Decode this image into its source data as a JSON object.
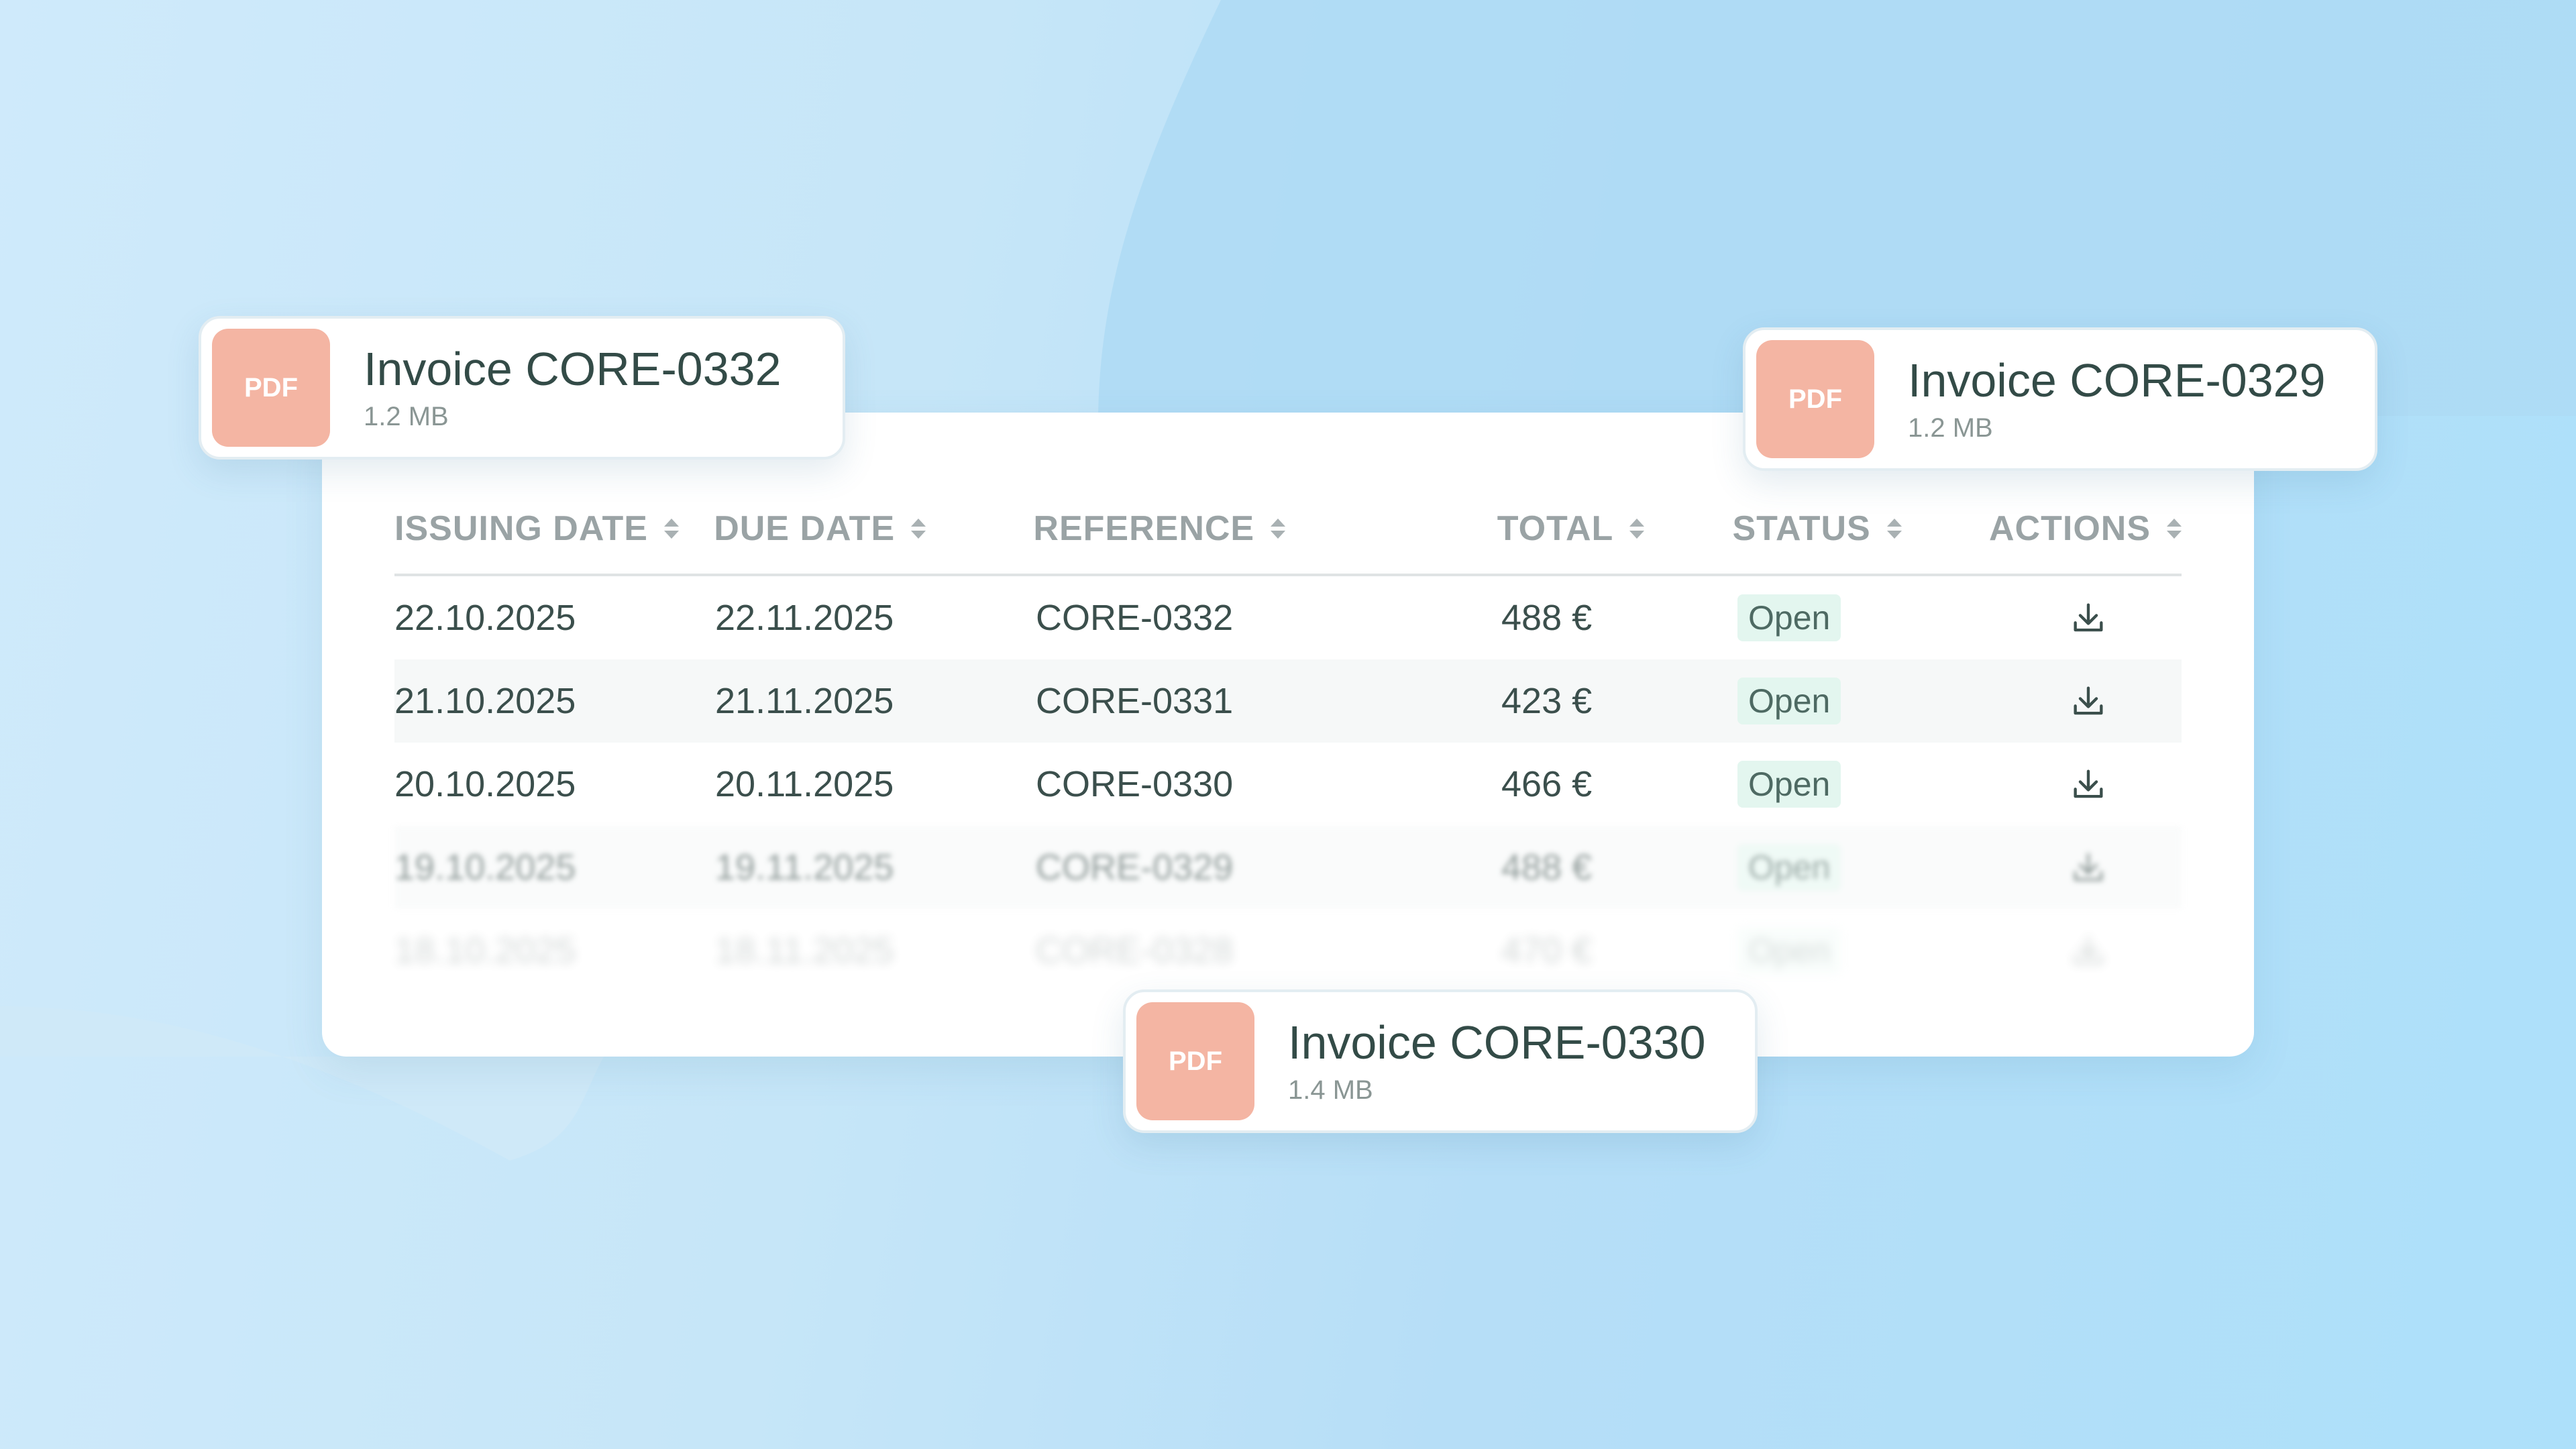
{
  "table": {
    "columns": [
      "ISSUING DATE",
      "DUE DATE",
      "REFERENCE",
      "TOTAL",
      "STATUS",
      "ACTIONS"
    ],
    "rows": [
      {
        "issuing_date": "22.10.2025",
        "due_date": "22.11.2025",
        "reference": "CORE-0332",
        "total": "488 €",
        "status": "Open"
      },
      {
        "issuing_date": "21.10.2025",
        "due_date": "21.11.2025",
        "reference": "CORE-0331",
        "total": "423 €",
        "status": "Open"
      },
      {
        "issuing_date": "20.10.2025",
        "due_date": "20.11.2025",
        "reference": "CORE-0330",
        "total": "466 €",
        "status": "Open"
      },
      {
        "issuing_date": "19.10.2025",
        "due_date": "19.11.2025",
        "reference": "CORE-0329",
        "total": "488 €",
        "status": "Open"
      },
      {
        "issuing_date": "18.10.2025",
        "due_date": "18.11.2025",
        "reference": "CORE-0328",
        "total": "470 €",
        "status": "Open"
      }
    ]
  },
  "files": [
    {
      "badge": "PDF",
      "title": "Invoice CORE-0332",
      "size": "1.2 MB"
    },
    {
      "badge": "PDF",
      "title": "Invoice CORE-0329",
      "size": "1.2 MB"
    },
    {
      "badge": "PDF",
      "title": "Invoice CORE-0330",
      "size": "1.4 MB"
    }
  ],
  "icons": {
    "sort": "sort-icon",
    "download": "download-icon"
  },
  "colors": {
    "background": "#ade0fa",
    "pdf_tile": "#f4b5a3",
    "status_badge_bg": "#e3f6ef",
    "text": "#3b4f4c",
    "header_text": "#9aa3a5"
  }
}
